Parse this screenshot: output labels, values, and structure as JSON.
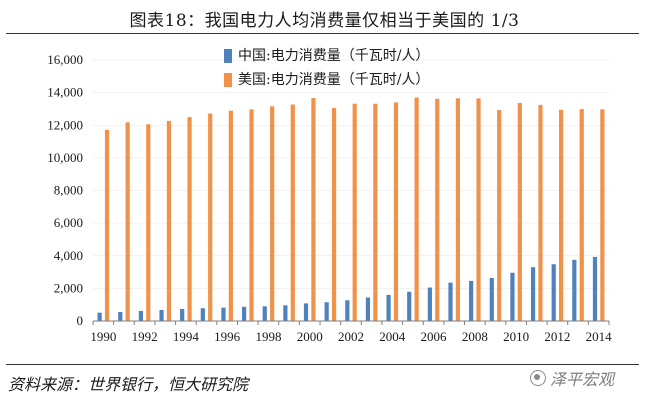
{
  "page_title": "图表18：我国电力人均消费量仅相当于美国的 1/3",
  "source_note": "资料来源：世界银行，恒大研究院",
  "watermark": "泽平宏观",
  "colors": {
    "china": "#4f81bd",
    "usa": "#f0924a",
    "axis": "#7f7f7f",
    "text": "#1a1a1a"
  },
  "chart_data": {
    "type": "bar",
    "title": "",
    "xlabel": "",
    "ylabel": "",
    "ylim": [
      0,
      16000
    ],
    "yticks": [
      0,
      2000,
      4000,
      6000,
      8000,
      10000,
      12000,
      14000,
      16000
    ],
    "ytick_labels": [
      "0",
      "2,000",
      "4,000",
      "6,000",
      "8,000",
      "10,000",
      "12,000",
      "14,000",
      "16,000"
    ],
    "categories": [
      "1990",
      "1991",
      "1992",
      "1993",
      "1994",
      "1995",
      "1996",
      "1997",
      "1998",
      "1999",
      "2000",
      "2001",
      "2002",
      "2003",
      "2004",
      "2005",
      "2006",
      "2007",
      "2008",
      "2009",
      "2010",
      "2011",
      "2012",
      "2013",
      "2014"
    ],
    "xtick_labels": [
      "1990",
      "",
      "1992",
      "",
      "1994",
      "",
      "1996",
      "",
      "1998",
      "",
      "2000",
      "",
      "2002",
      "",
      "2004",
      "",
      "2006",
      "",
      "2008",
      "",
      "2010",
      "",
      "2012",
      "",
      "2014"
    ],
    "legend_position": "top-center",
    "series": [
      {
        "name": "中国:电力消费量（千瓦时/人）",
        "values": [
          510,
          550,
          620,
          680,
          740,
          780,
          820,
          870,
          900,
          960,
          1080,
          1150,
          1270,
          1440,
          1600,
          1790,
          2050,
          2350,
          2460,
          2640,
          2960,
          3300,
          3480,
          3750,
          3930
        ]
      },
      {
        "name": "美国:电力消费量（千瓦时/人）",
        "values": [
          11720,
          12180,
          12060,
          12270,
          12500,
          12720,
          12890,
          12970,
          13160,
          13270,
          13670,
          13060,
          13320,
          13320,
          13400,
          13700,
          13620,
          13650,
          13650,
          12930,
          13370,
          13250,
          12950,
          12990,
          12980
        ]
      }
    ]
  }
}
